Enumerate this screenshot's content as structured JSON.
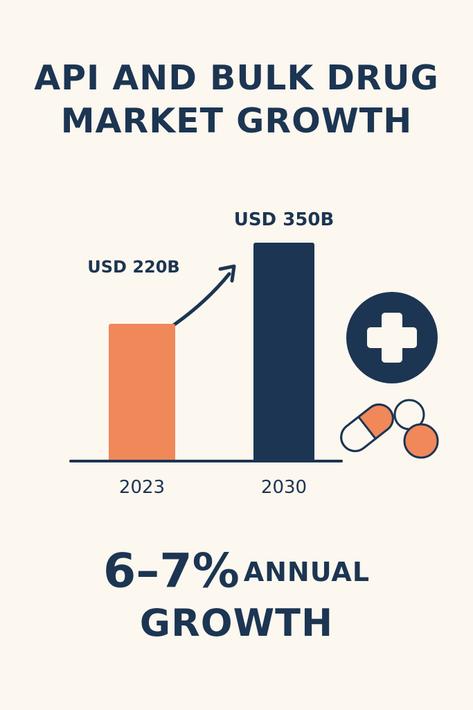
{
  "title": {
    "line1": "API AND BULK DRUG",
    "line2": "MARKET GROWTH"
  },
  "colors": {
    "background": "#fcf7ef",
    "navy": "#1c3552",
    "orange": "#f0885a"
  },
  "chart_data": {
    "type": "bar",
    "categories": [
      "2023",
      "2030"
    ],
    "values": [
      220,
      350
    ],
    "data_labels": [
      "USD 220B",
      "USD 350B"
    ],
    "unit": "USD billion",
    "ylim": [
      0,
      350
    ],
    "grid": false,
    "bar_colors": [
      "#f0885a",
      "#1c3552"
    ],
    "annotation": "upward-trend-arrow"
  },
  "icons": [
    "medical-cross-icon",
    "capsule-icon",
    "white-pill-icon",
    "orange-pill-icon"
  ],
  "growth": {
    "rate": "6–7%",
    "label": "ANNUAL",
    "label2": "GROWTH"
  }
}
